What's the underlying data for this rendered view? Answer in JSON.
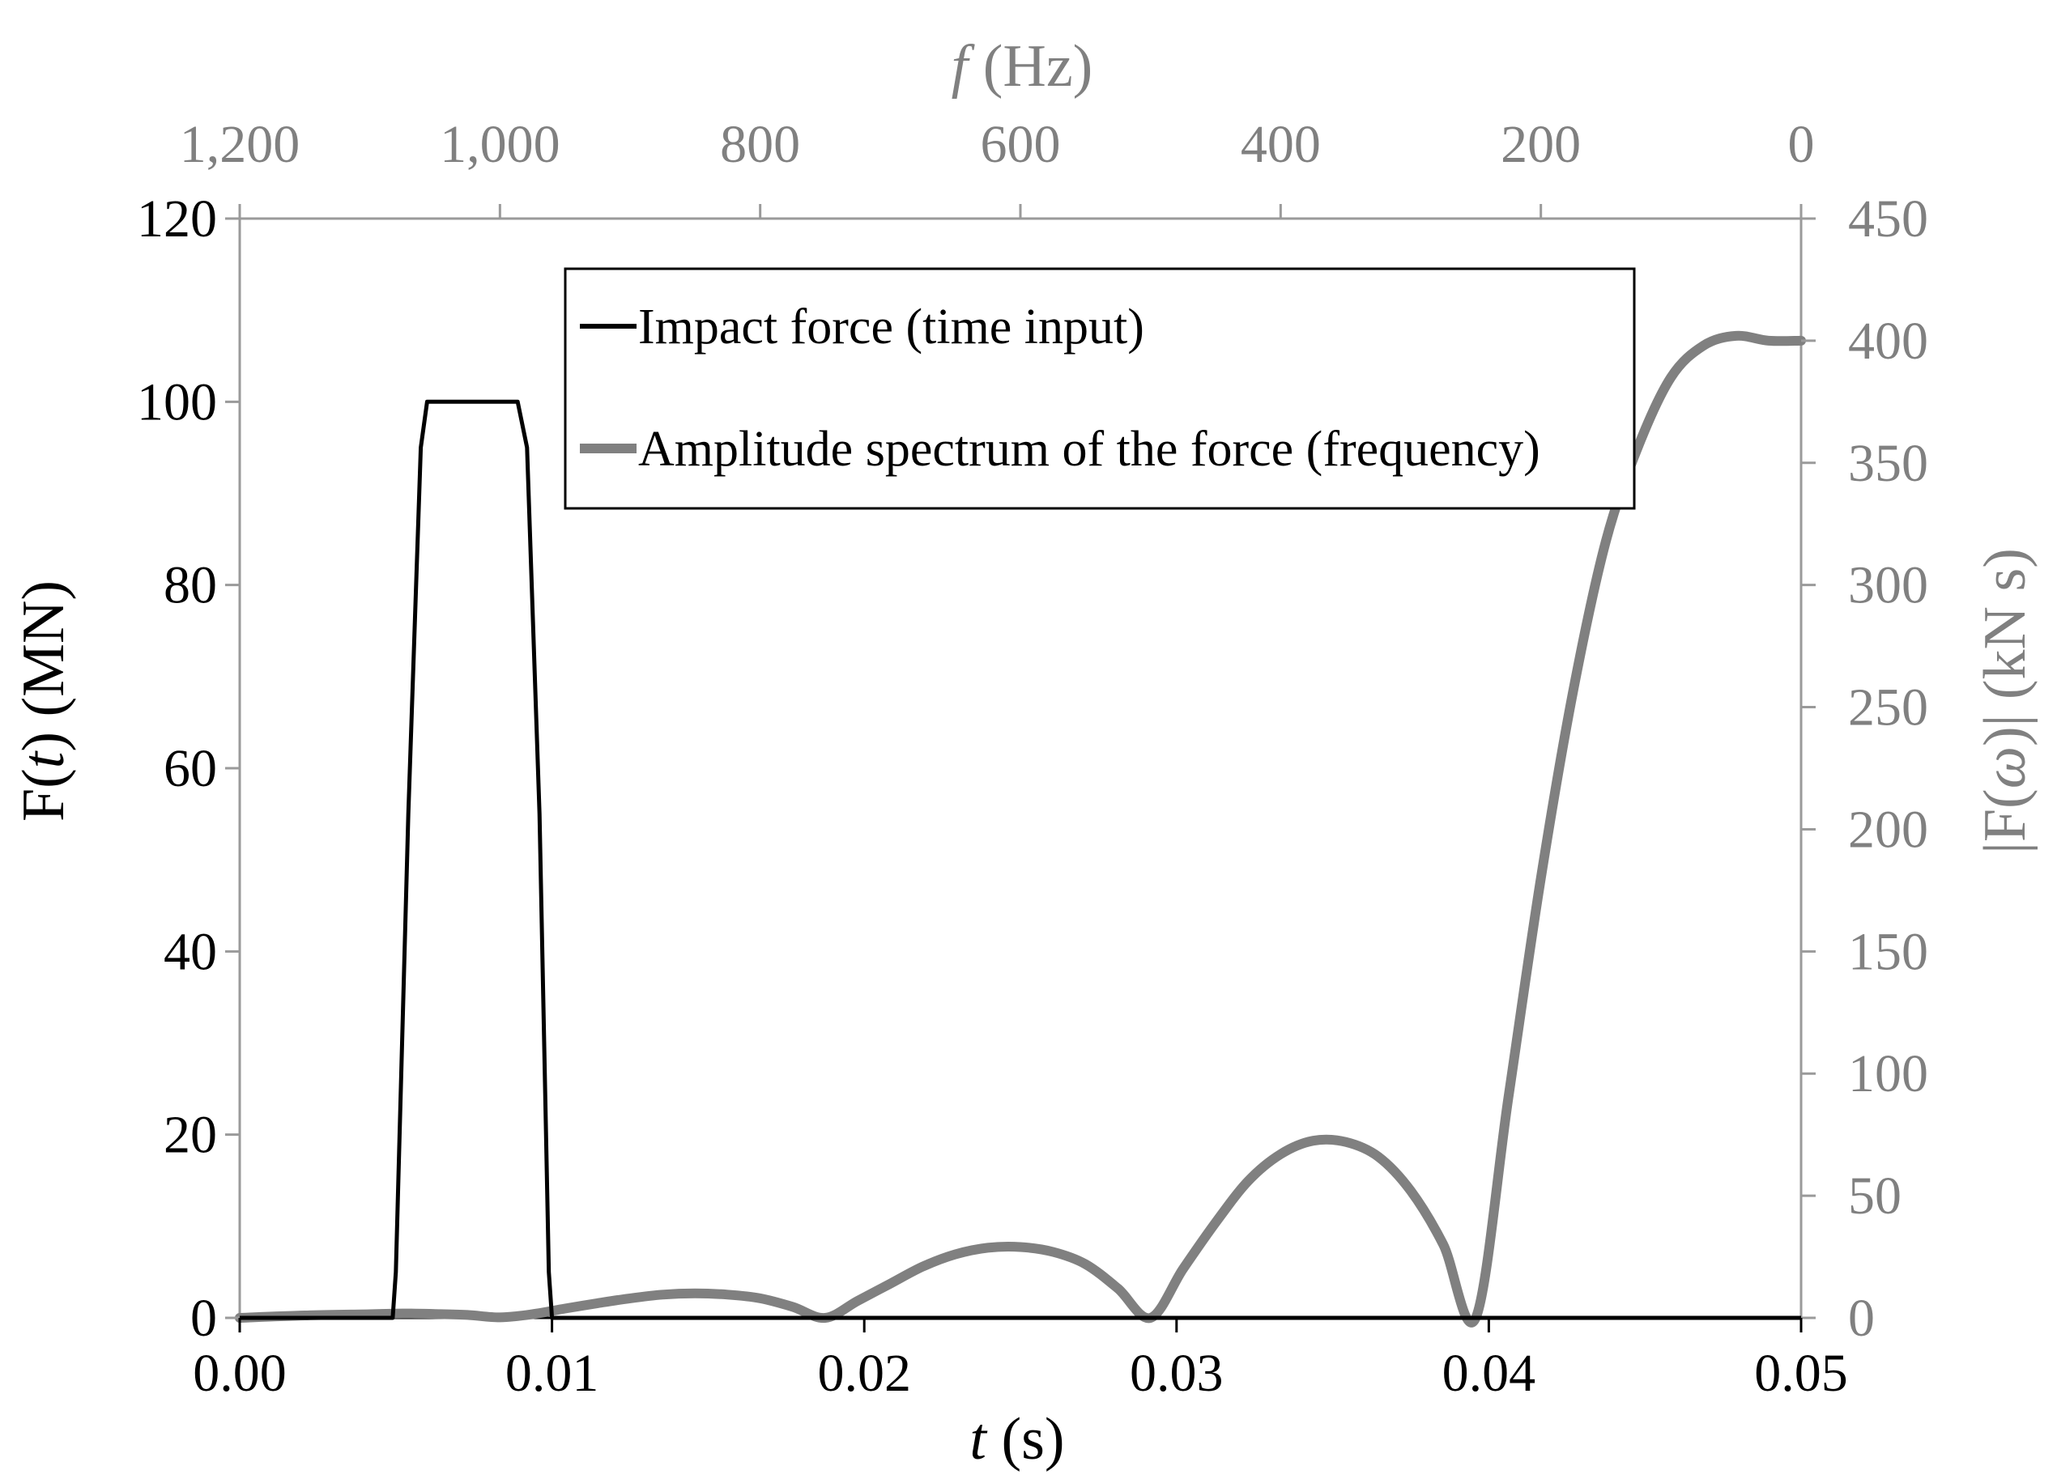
{
  "chart_data": {
    "type": "line",
    "colors": {
      "primary": "#000000",
      "secondary": "#808080"
    },
    "axes": {
      "x_bottom": {
        "label_italic": "t",
        "label_rest": " (s)",
        "range": [
          0,
          0.05
        ],
        "ticks": [
          0,
          0.01,
          0.02,
          0.03,
          0.04,
          0.05
        ],
        "tick_labels": [
          "0.00",
          "0.01",
          "0.02",
          "0.03",
          "0.04",
          "0.05"
        ]
      },
      "x_top": {
        "label_italic": "f",
        "label_rest": " (Hz)",
        "range": [
          1200,
          0
        ],
        "ticks": [
          1200,
          1000,
          800,
          600,
          400,
          200,
          0
        ],
        "tick_labels": [
          "1,200",
          "1,000",
          "800",
          "600",
          "400",
          "200",
          "0"
        ]
      },
      "y_left": {
        "label_pre": "F(",
        "label_italic": "t",
        "label_post": ") (MN)",
        "range": [
          0,
          120
        ],
        "ticks": [
          0,
          20,
          40,
          60,
          80,
          100,
          120
        ],
        "tick_labels": [
          "0",
          "20",
          "40",
          "60",
          "80",
          "100",
          "120"
        ]
      },
      "y_right": {
        "label_pre": "|F(",
        "label_italic": "ω",
        "label_post": ")| (kN s)",
        "range": [
          0,
          450
        ],
        "ticks": [
          0,
          50,
          100,
          150,
          200,
          250,
          300,
          350,
          400,
          450
        ],
        "tick_labels": [
          "0",
          "50",
          "100",
          "150",
          "200",
          "250",
          "300",
          "350",
          "400",
          "450"
        ]
      }
    },
    "grid": false,
    "legend_position": "top-center",
    "series": [
      {
        "name": "Impact force (time input)",
        "axis": "bottom-left",
        "color": "#000000",
        "x": [
          0,
          0.0049,
          0.005,
          0.0054,
          0.0058,
          0.006,
          0.0062,
          0.0075,
          0.0087,
          0.0089,
          0.0092,
          0.0096,
          0.0099,
          0.01,
          0.0101,
          0.05
        ],
        "y": [
          0,
          0,
          5,
          55,
          95,
          100,
          100,
          100,
          100,
          100,
          95,
          55,
          5,
          0,
          0,
          0
        ]
      },
      {
        "name": "Amplitude spectrum of the force (frequency)",
        "axis": "top-right",
        "color": "#808080",
        "x": [
          1200,
          1150,
          1100,
          1075,
          1050,
          1025,
          1000,
          975,
          950,
          925,
          900,
          875,
          850,
          825,
          800,
          775,
          750,
          725,
          700,
          675,
          650,
          625,
          600,
          575,
          550,
          525,
          500,
          475,
          450,
          425,
          400,
          375,
          350,
          325,
          300,
          275,
          250,
          225,
          200,
          175,
          150,
          125,
          100,
          75,
          50,
          25,
          0
        ],
        "y": [
          0,
          1,
          1.5,
          1.8,
          1.6,
          1.2,
          0.2,
          1.5,
          3.8,
          6,
          8,
          9.5,
          10,
          9.5,
          8,
          4.5,
          0,
          7,
          14,
          21,
          26,
          28.7,
          29,
          27,
          22,
          12,
          0,
          20,
          39,
          56,
          67,
          72.5,
          72,
          66,
          52,
          30,
          0,
          90,
          180,
          257,
          318,
          357,
          385,
          398,
          402,
          400,
          400
        ]
      }
    ]
  }
}
